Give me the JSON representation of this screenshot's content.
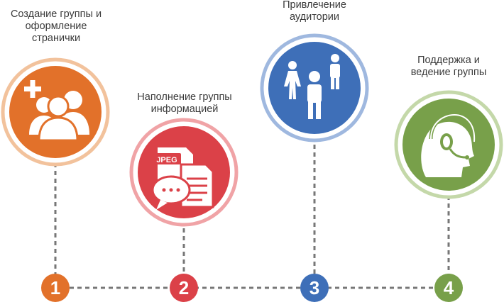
{
  "steps": [
    {
      "number": "1",
      "title_lines": [
        "Создание группы и",
        "оформление",
        "странички"
      ],
      "icon": "users-add-icon",
      "color": "#e2712a",
      "ring": "#f2c29c"
    },
    {
      "number": "2",
      "title_lines": [
        "Наполнение группы",
        "информацией"
      ],
      "icon": "documents-chat-icon",
      "color": "#db4148",
      "ring": "#f0a3a6"
    },
    {
      "number": "3",
      "title_lines": [
        "Привлечение",
        "аудитории"
      ],
      "icon": "audience-icon",
      "color": "#3e6fb8",
      "ring": "#9fb8df"
    },
    {
      "number": "4",
      "title_lines": [
        "Поддержка и",
        "ведение группы"
      ],
      "icon": "headset-operator-icon",
      "color": "#78a04a",
      "ring": "#c4d8a9"
    }
  ],
  "doc_badge": "JPEG",
  "connector_color": "#777777"
}
